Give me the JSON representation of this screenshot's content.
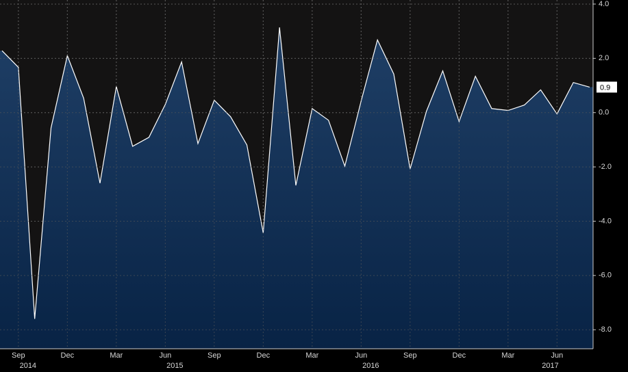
{
  "chart_data": {
    "type": "area",
    "categories": [
      null,
      "Sep",
      null,
      null,
      "Dec",
      null,
      null,
      "Mar",
      null,
      null,
      "Jun",
      null,
      null,
      "Sep",
      null,
      null,
      "Dec",
      null,
      null,
      "Mar",
      null,
      null,
      "Jun",
      null,
      null,
      "Sep",
      null,
      null,
      "Dec",
      null,
      null,
      "Mar",
      null,
      null,
      "Jun",
      null,
      null
    ],
    "category_years": [
      null,
      "2014",
      null,
      null,
      null,
      null,
      null,
      null,
      null,
      null,
      "2015",
      null,
      null,
      null,
      null,
      null,
      null,
      null,
      null,
      null,
      null,
      null,
      "2016",
      null,
      null,
      null,
      null,
      null,
      null,
      null,
      null,
      null,
      null,
      "2017",
      null,
      null,
      null
    ],
    "series": [
      {
        "color": "#ffffff",
        "values": [
          2.28,
          1.67,
          -7.6,
          -0.56,
          2.1,
          0.53,
          -2.6,
          0.96,
          -1.24,
          -0.91,
          0.3,
          1.87,
          -1.14,
          0.46,
          -0.15,
          -1.19,
          -4.43,
          3.14,
          -2.68,
          0.15,
          -0.28,
          -1.97,
          0.43,
          2.68,
          1.42,
          -2.08,
          0.05,
          1.54,
          -0.33,
          1.34,
          0.15,
          0.08,
          0.28,
          0.84,
          -0.05,
          1.11,
          0.94
        ],
        "value_labels": [
          null,
          null,
          null,
          null,
          null,
          null,
          null,
          null,
          null,
          null,
          null,
          null,
          null,
          null,
          null,
          null,
          null,
          null,
          null,
          null,
          null,
          null,
          null,
          null,
          null,
          null,
          null,
          null,
          null,
          null,
          null,
          null,
          null,
          null,
          null,
          null,
          "0.9"
        ]
      }
    ],
    "ylim": [
      -8.7,
      4.15
    ],
    "yticks": [
      {
        "value": 4,
        "label": "4.0"
      },
      {
        "value": 2,
        "label": "2.0"
      },
      {
        "value": 0,
        "label": "0.0"
      },
      {
        "value": -2,
        "label": "-2.0"
      },
      {
        "value": -4,
        "label": "-4.0"
      },
      {
        "value": -6,
        "label": "-6.0"
      },
      {
        "value": -8,
        "label": "-8.0"
      }
    ],
    "grid": true
  }
}
